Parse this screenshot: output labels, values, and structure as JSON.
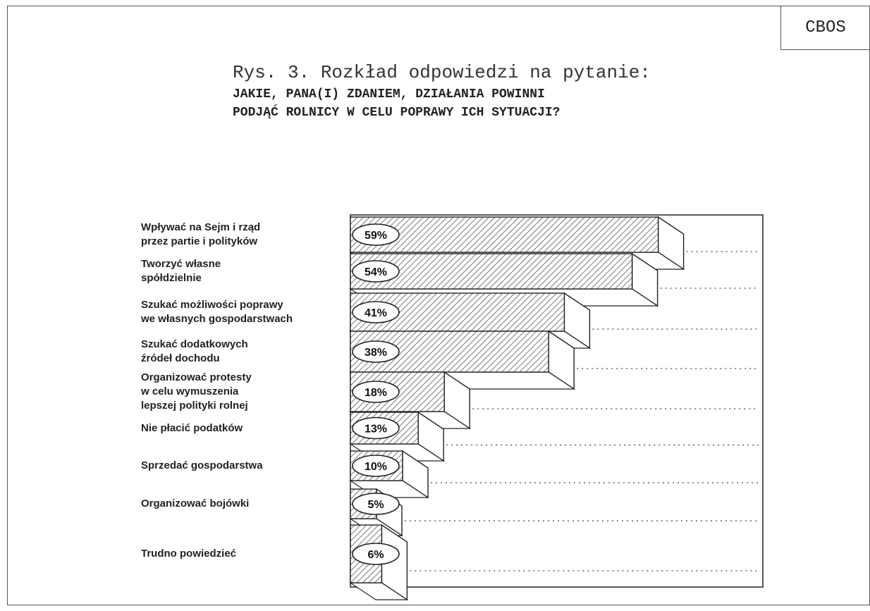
{
  "badge": "CBOS",
  "title": {
    "line1": "Rys. 3. Rozkład odpowiedzi na pytanie:",
    "line2": "JAKIE, PANA(I) ZDANIEM, DZIAŁANIA POWINNI",
    "line3": "PODJĄĆ ROLNICY W CELU POPRAWY ICH SYTUACJI?"
  },
  "chart_data": {
    "type": "bar",
    "orientation": "horizontal",
    "style": "3d-stepped-hatched",
    "categories": [
      "Wpływać na Sejm i rząd\nprzez partie i polityków",
      "Tworzyć własne\nspółdzielnie",
      "Szukać możliwości poprawy\nwe własnych gospodarstwach",
      "Szukać dodatkowych\nźródeł dochodu",
      "Organizować protesty\nw celu wymuszenia\nlepszej polityki rolnej",
      "Nie płacić podatków",
      "Sprzedać gospodarstwa",
      "Organizować bojówki",
      "Trudno powiedzieć"
    ],
    "values": [
      59,
      54,
      41,
      38,
      18,
      13,
      10,
      5,
      6
    ],
    "data_labels": [
      "59%",
      "54%",
      "41%",
      "38%",
      "18%",
      "13%",
      "10%",
      "5%",
      "6%"
    ],
    "unit": "%",
    "xlim": [
      0,
      100
    ],
    "grid": false,
    "colors": {
      "bar_hatch": "#555555",
      "outline": "#222222",
      "face": "#ffffff"
    }
  }
}
